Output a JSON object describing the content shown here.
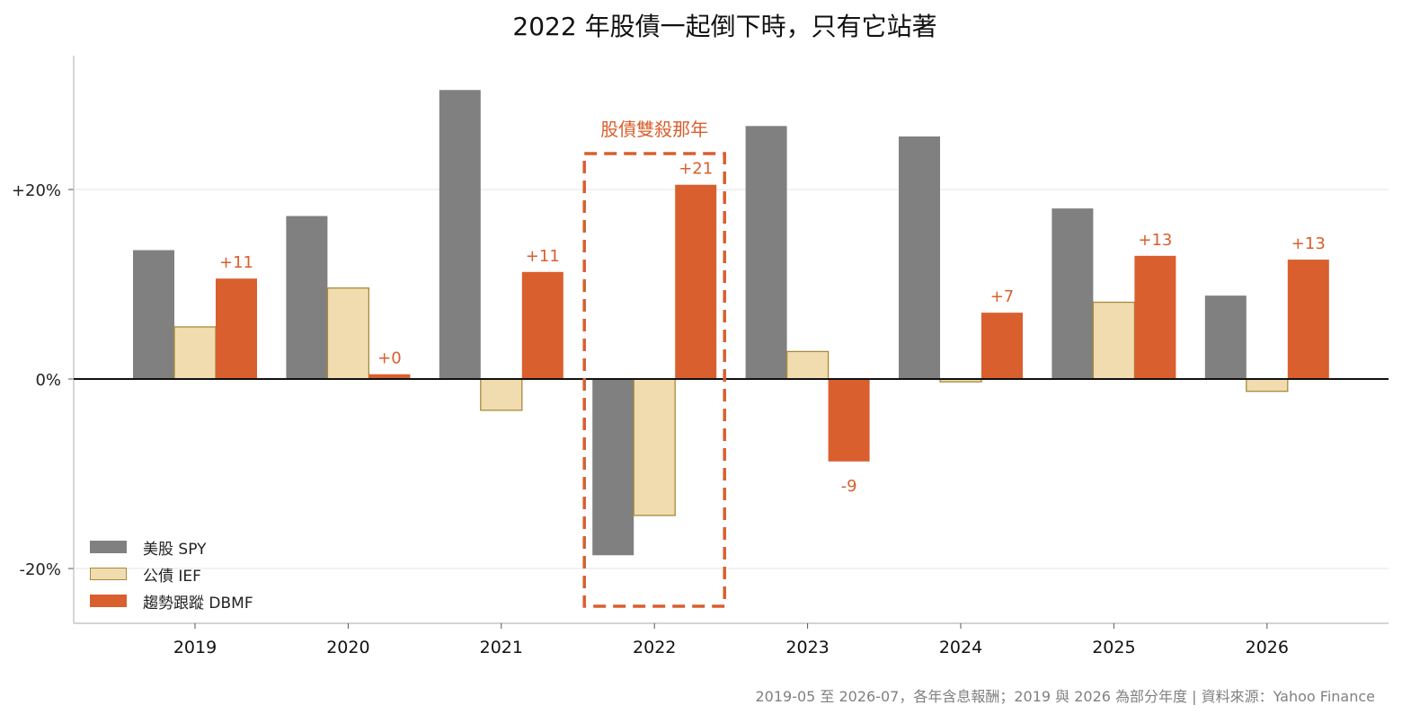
{
  "title": "2022 年股債一起倒下時，只有它站著",
  "footnote": "2019-05 至 2026-07，各年含息報酬；2019 與 2026 為部分年度 | 資料來源：Yahoo Finance",
  "highlight": {
    "label": "股債雙殺那年",
    "category": "2022",
    "color": "#d95f2e"
  },
  "colors": {
    "spy": "#808080",
    "ief_fill": "#f0dcaf",
    "ief_edge": "#a88a3a",
    "dbmf": "#d95f2e",
    "zero_line": "#111111",
    "grid": "#e6e6e6",
    "axis": "#bbbbbb"
  },
  "chart_data": {
    "type": "bar",
    "title": "2022 年股債一起倒下時，只有它站著",
    "xlabel": "",
    "ylabel": "",
    "categories": [
      "2019",
      "2020",
      "2021",
      "2022",
      "2023",
      "2024",
      "2025",
      "2026"
    ],
    "series": [
      {
        "name": "美股 SPY",
        "values": [
          13.6,
          17.2,
          30.5,
          -18.6,
          26.7,
          25.6,
          18.0,
          8.8
        ]
      },
      {
        "name": "公債 IEF",
        "values": [
          5.5,
          9.6,
          -3.3,
          -14.4,
          2.9,
          -0.3,
          8.1,
          -1.3
        ]
      },
      {
        "name": "趨勢跟蹤 DBMF",
        "values": [
          10.6,
          0.5,
          11.3,
          20.5,
          -8.7,
          7.0,
          13.0,
          12.6
        ]
      }
    ],
    "value_labels": {
      "series": "趨勢跟蹤 DBMF",
      "labels": [
        "+11",
        "+0",
        "+11",
        "+21",
        "-9",
        "+7",
        "+13",
        "+13"
      ]
    },
    "ylim": [
      -26,
      34
    ],
    "yticks": [
      -20,
      0,
      20
    ],
    "ytick_labels": [
      "-20%",
      "0%",
      "+20%"
    ],
    "grid": "horizontal",
    "legend_position": "lower-left"
  }
}
